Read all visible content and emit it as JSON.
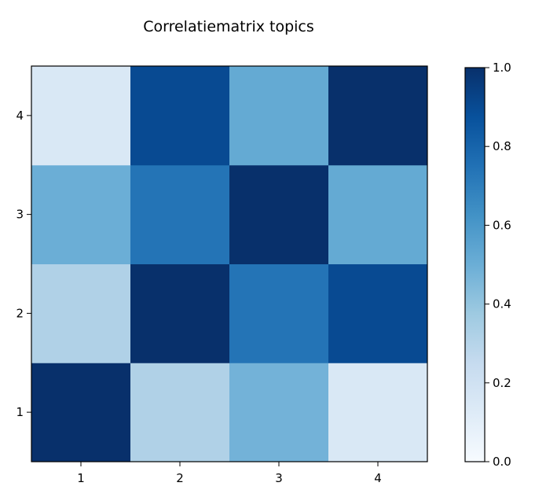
{
  "chart_data": {
    "type": "heatmap",
    "title": "Correlatiematrix topics",
    "x_categories": [
      "1",
      "2",
      "3",
      "4"
    ],
    "y_categories": [
      "1",
      "2",
      "3",
      "4"
    ],
    "values": [
      [
        1.0,
        0.32,
        0.48,
        0.15
      ],
      [
        0.32,
        1.0,
        0.74,
        0.9
      ],
      [
        0.5,
        0.74,
        1.0,
        0.52
      ],
      [
        0.15,
        0.9,
        0.52,
        1.0
      ]
    ],
    "colormap": "Blues",
    "colorbar": {
      "range": [
        0.0,
        1.0
      ],
      "ticks": [
        "0.0",
        "0.2",
        "0.4",
        "0.6",
        "0.8",
        "1.0"
      ]
    },
    "xlabel": "",
    "ylabel": ""
  }
}
